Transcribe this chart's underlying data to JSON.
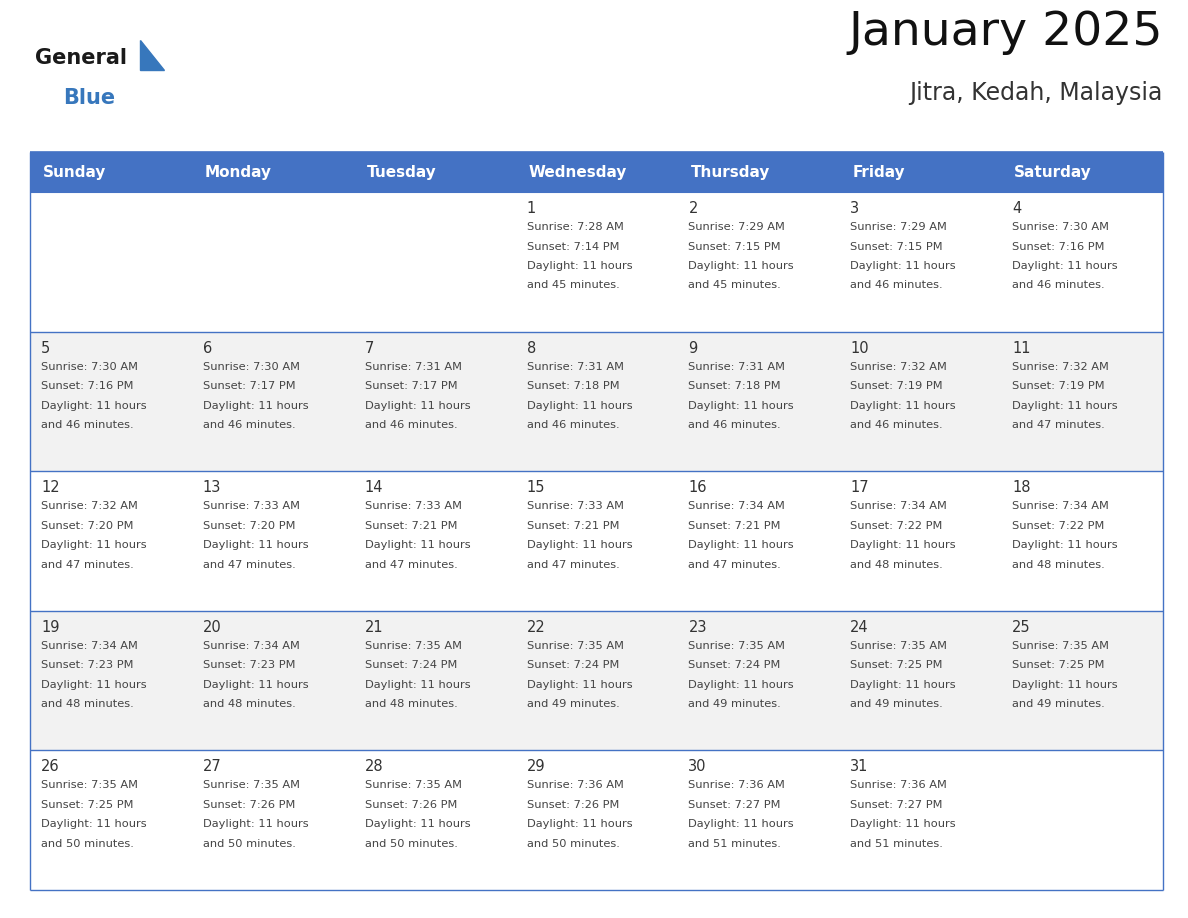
{
  "title": "January 2025",
  "subtitle": "Jitra, Kedah, Malaysia",
  "header_color": "#4472C4",
  "header_text_color": "#FFFFFF",
  "day_names": [
    "Sunday",
    "Monday",
    "Tuesday",
    "Wednesday",
    "Thursday",
    "Friday",
    "Saturday"
  ],
  "background_color": "#FFFFFF",
  "cell_bg_even": "#F2F2F2",
  "cell_bg_odd": "#FFFFFF",
  "grid_line_color": "#4472C4",
  "row_divider_color": "#4472C4",
  "date_color": "#333333",
  "text_color": "#444444",
  "logo_general_color": "#1a1a1a",
  "logo_blue_color": "#3777BC",
  "calendar": [
    [
      {
        "date": "",
        "sunrise": "",
        "sunset": "",
        "daylight": ""
      },
      {
        "date": "",
        "sunrise": "",
        "sunset": "",
        "daylight": ""
      },
      {
        "date": "",
        "sunrise": "",
        "sunset": "",
        "daylight": ""
      },
      {
        "date": "1",
        "sunrise": "7:28 AM",
        "sunset": "7:14 PM",
        "daylight": "11 hours and 45 minutes."
      },
      {
        "date": "2",
        "sunrise": "7:29 AM",
        "sunset": "7:15 PM",
        "daylight": "11 hours and 45 minutes."
      },
      {
        "date": "3",
        "sunrise": "7:29 AM",
        "sunset": "7:15 PM",
        "daylight": "11 hours and 46 minutes."
      },
      {
        "date": "4",
        "sunrise": "7:30 AM",
        "sunset": "7:16 PM",
        "daylight": "11 hours and 46 minutes."
      }
    ],
    [
      {
        "date": "5",
        "sunrise": "7:30 AM",
        "sunset": "7:16 PM",
        "daylight": "11 hours and 46 minutes."
      },
      {
        "date": "6",
        "sunrise": "7:30 AM",
        "sunset": "7:17 PM",
        "daylight": "11 hours and 46 minutes."
      },
      {
        "date": "7",
        "sunrise": "7:31 AM",
        "sunset": "7:17 PM",
        "daylight": "11 hours and 46 minutes."
      },
      {
        "date": "8",
        "sunrise": "7:31 AM",
        "sunset": "7:18 PM",
        "daylight": "11 hours and 46 minutes."
      },
      {
        "date": "9",
        "sunrise": "7:31 AM",
        "sunset": "7:18 PM",
        "daylight": "11 hours and 46 minutes."
      },
      {
        "date": "10",
        "sunrise": "7:32 AM",
        "sunset": "7:19 PM",
        "daylight": "11 hours and 46 minutes."
      },
      {
        "date": "11",
        "sunrise": "7:32 AM",
        "sunset": "7:19 PM",
        "daylight": "11 hours and 47 minutes."
      }
    ],
    [
      {
        "date": "12",
        "sunrise": "7:32 AM",
        "sunset": "7:20 PM",
        "daylight": "11 hours and 47 minutes."
      },
      {
        "date": "13",
        "sunrise": "7:33 AM",
        "sunset": "7:20 PM",
        "daylight": "11 hours and 47 minutes."
      },
      {
        "date": "14",
        "sunrise": "7:33 AM",
        "sunset": "7:21 PM",
        "daylight": "11 hours and 47 minutes."
      },
      {
        "date": "15",
        "sunrise": "7:33 AM",
        "sunset": "7:21 PM",
        "daylight": "11 hours and 47 minutes."
      },
      {
        "date": "16",
        "sunrise": "7:34 AM",
        "sunset": "7:21 PM",
        "daylight": "11 hours and 47 minutes."
      },
      {
        "date": "17",
        "sunrise": "7:34 AM",
        "sunset": "7:22 PM",
        "daylight": "11 hours and 48 minutes."
      },
      {
        "date": "18",
        "sunrise": "7:34 AM",
        "sunset": "7:22 PM",
        "daylight": "11 hours and 48 minutes."
      }
    ],
    [
      {
        "date": "19",
        "sunrise": "7:34 AM",
        "sunset": "7:23 PM",
        "daylight": "11 hours and 48 minutes."
      },
      {
        "date": "20",
        "sunrise": "7:34 AM",
        "sunset": "7:23 PM",
        "daylight": "11 hours and 48 minutes."
      },
      {
        "date": "21",
        "sunrise": "7:35 AM",
        "sunset": "7:24 PM",
        "daylight": "11 hours and 48 minutes."
      },
      {
        "date": "22",
        "sunrise": "7:35 AM",
        "sunset": "7:24 PM",
        "daylight": "11 hours and 49 minutes."
      },
      {
        "date": "23",
        "sunrise": "7:35 AM",
        "sunset": "7:24 PM",
        "daylight": "11 hours and 49 minutes."
      },
      {
        "date": "24",
        "sunrise": "7:35 AM",
        "sunset": "7:25 PM",
        "daylight": "11 hours and 49 minutes."
      },
      {
        "date": "25",
        "sunrise": "7:35 AM",
        "sunset": "7:25 PM",
        "daylight": "11 hours and 49 minutes."
      }
    ],
    [
      {
        "date": "26",
        "sunrise": "7:35 AM",
        "sunset": "7:25 PM",
        "daylight": "11 hours and 50 minutes."
      },
      {
        "date": "27",
        "sunrise": "7:35 AM",
        "sunset": "7:26 PM",
        "daylight": "11 hours and 50 minutes."
      },
      {
        "date": "28",
        "sunrise": "7:35 AM",
        "sunset": "7:26 PM",
        "daylight": "11 hours and 50 minutes."
      },
      {
        "date": "29",
        "sunrise": "7:36 AM",
        "sunset": "7:26 PM",
        "daylight": "11 hours and 50 minutes."
      },
      {
        "date": "30",
        "sunrise": "7:36 AM",
        "sunset": "7:27 PM",
        "daylight": "11 hours and 51 minutes."
      },
      {
        "date": "31",
        "sunrise": "7:36 AM",
        "sunset": "7:27 PM",
        "daylight": "11 hours and 51 minutes."
      },
      {
        "date": "",
        "sunrise": "",
        "sunset": "",
        "daylight": ""
      }
    ]
  ]
}
